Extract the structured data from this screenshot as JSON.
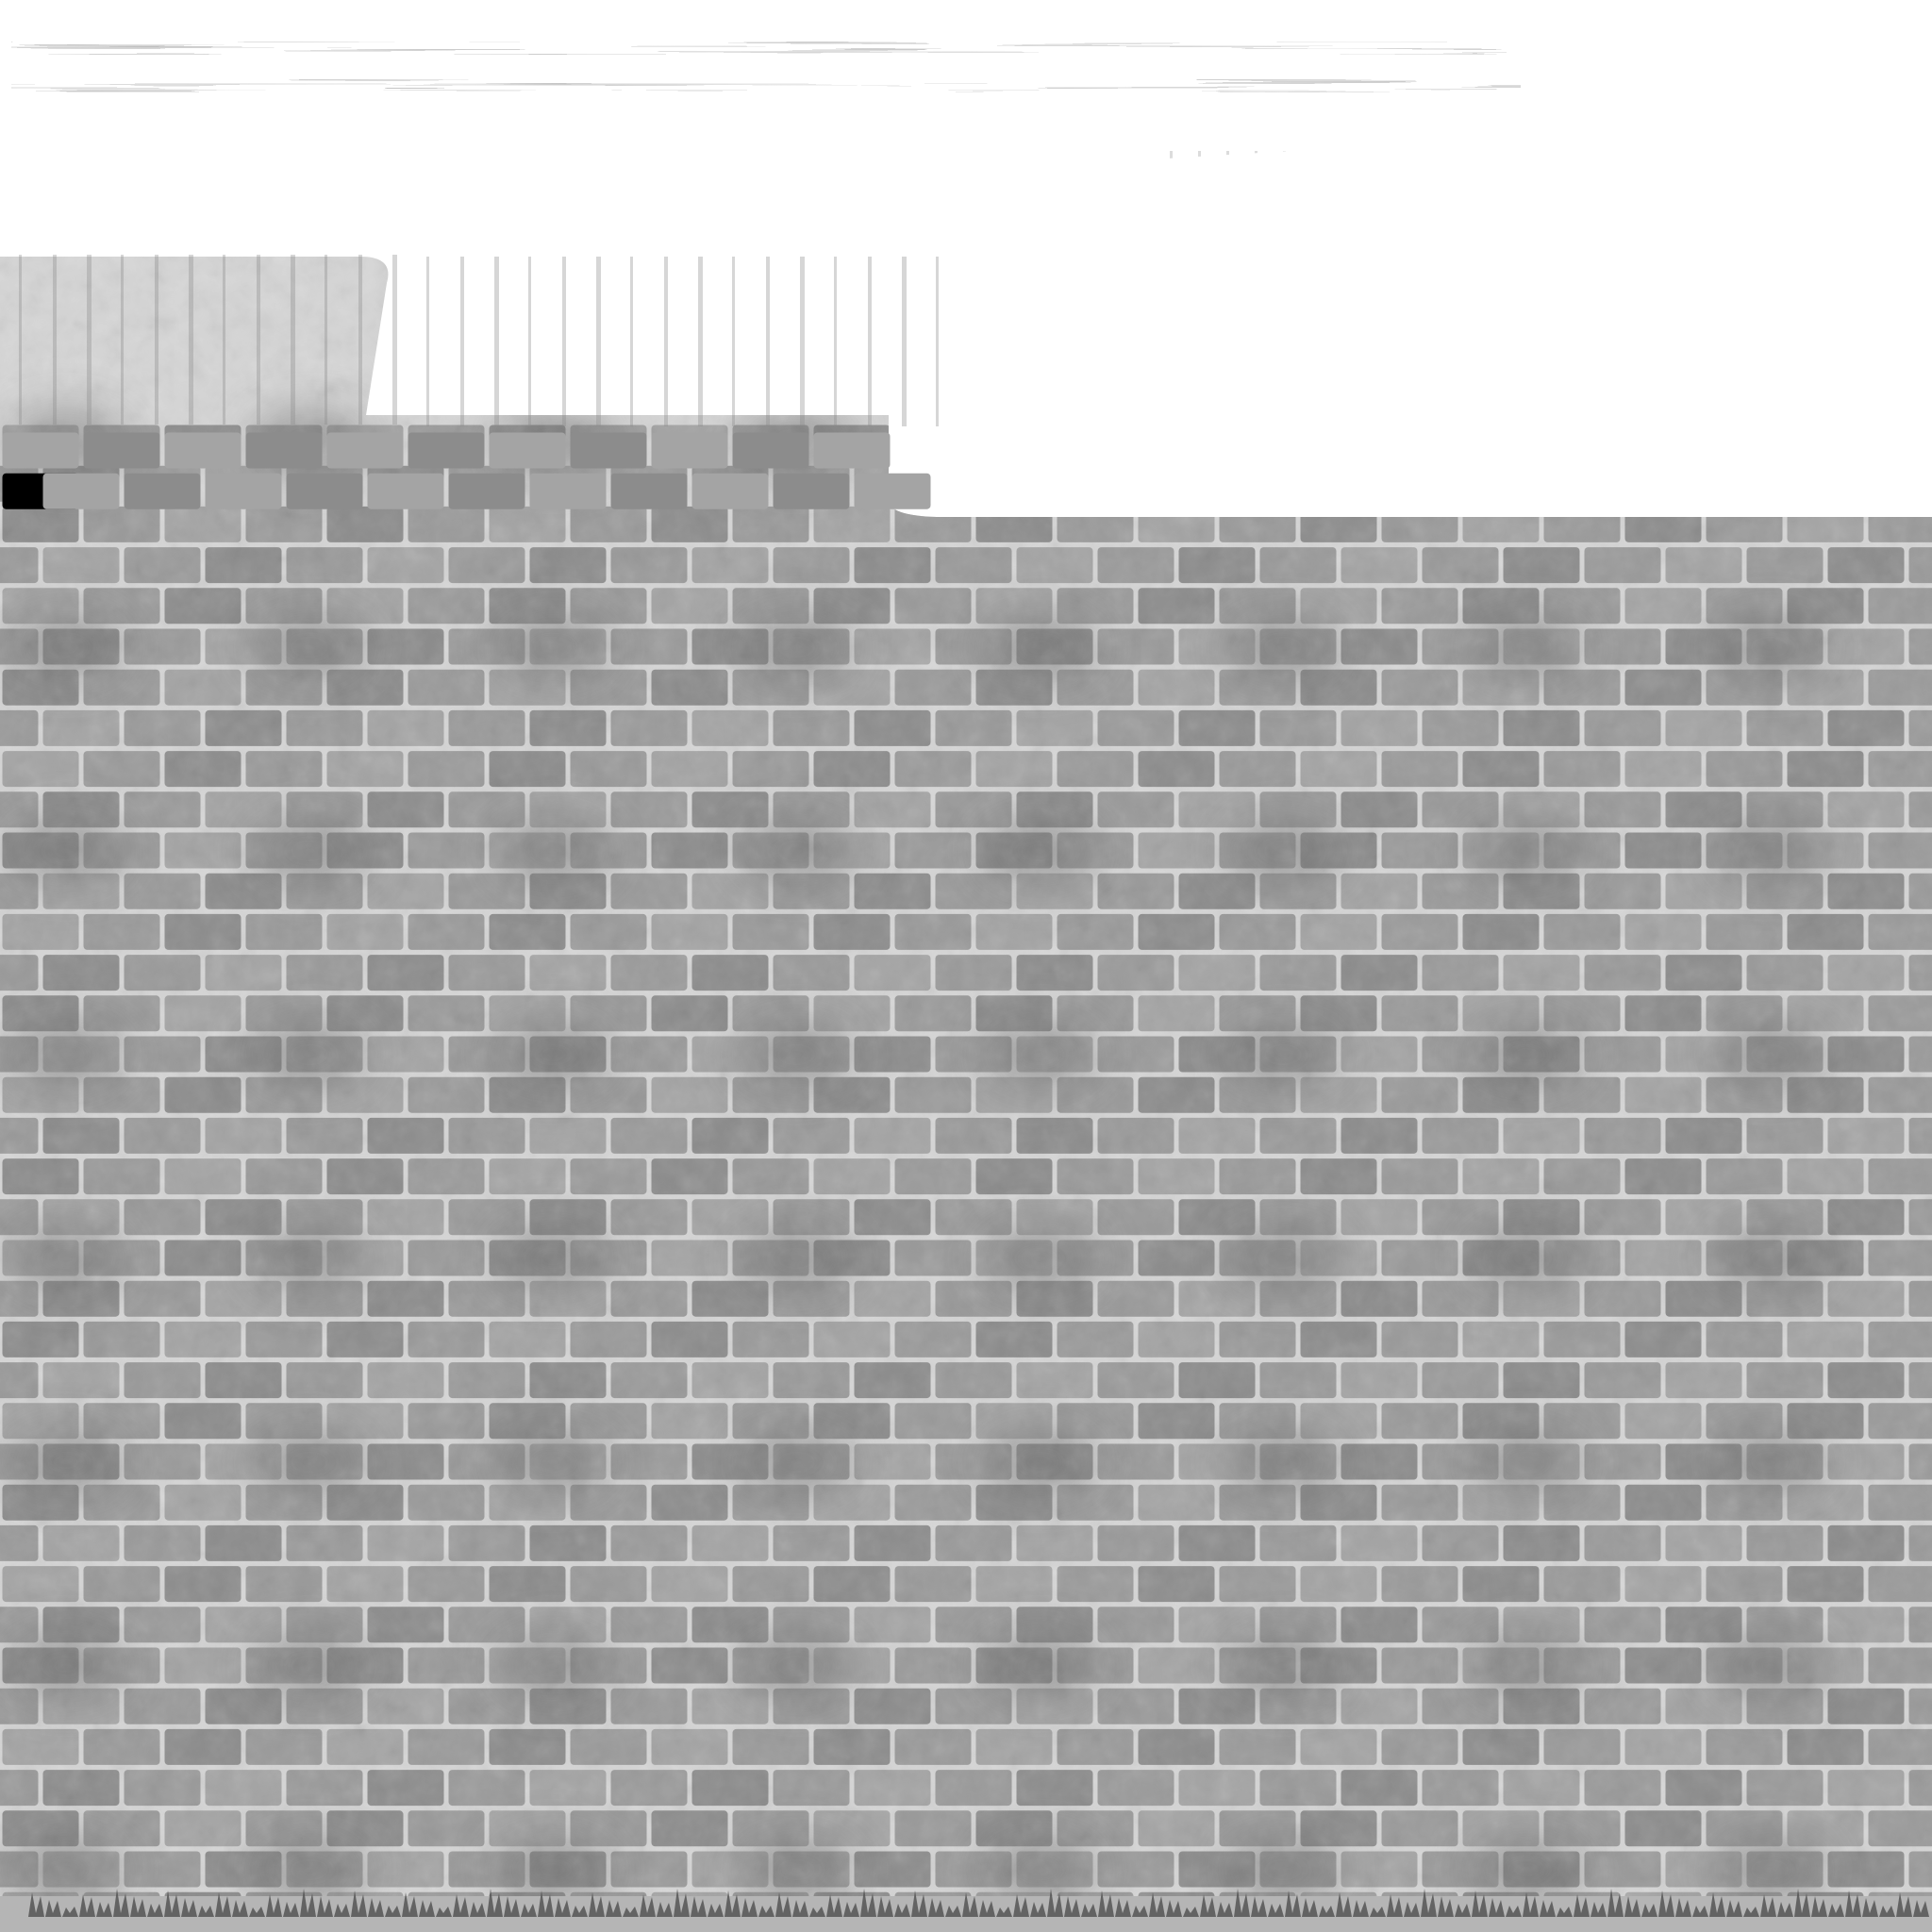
{
  "texture": {
    "kind": "brick-wall-texture-atlas",
    "palette": {
      "background": "#ffffff",
      "mortar": "#d6d6d6",
      "brick_light": "#a4a4a4",
      "brick_mid": "#9a9a9a",
      "brick_dark": "#8c8c8c",
      "soot": "#6e6e6e",
      "streak": "#8a8a8a",
      "weeds": "#555555",
      "ground": "#b5b5b5"
    }
  }
}
